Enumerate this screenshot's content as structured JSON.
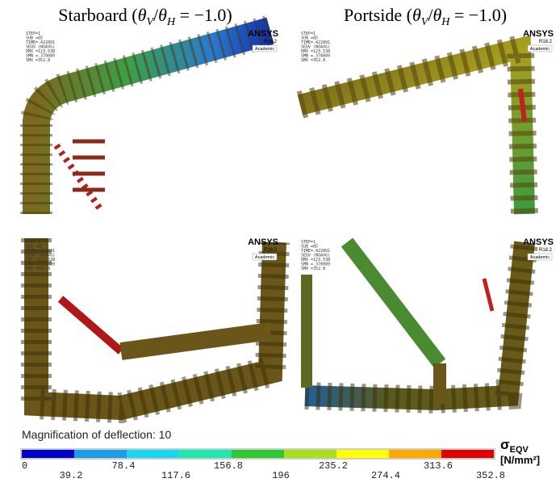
{
  "panels": [
    {
      "prefix": "Starboard (",
      "a": "θ",
      "a_sub": "V",
      "slash": "/",
      "b": "θ",
      "b_sub": "H",
      "suffix": " = −1.0)"
    },
    {
      "prefix": "Portside (",
      "a": "θ",
      "a_sub": "V",
      "slash": "/",
      "b": "θ",
      "b_sub": "H",
      "suffix": " = −1.0)"
    }
  ],
  "ansys": {
    "logo": "ANSYS",
    "version": "R18.2",
    "license": "Academic",
    "info": [
      "STEP=1",
      "SUB =85",
      "TIME=.422891",
      "SEQV     (NOAVG)",
      "DMX =123.538",
      "SMN =.378089",
      "SMX =352.8"
    ]
  },
  "magnification": "Magnification of deflection: 10",
  "colorbar": {
    "colors": [
      "#0000c8",
      "#1a9ee8",
      "#1ad6f2",
      "#20e8b0",
      "#30c830",
      "#a8e01e",
      "#ffff00",
      "#ffa800",
      "#e00000"
    ],
    "ticks": [
      "0",
      "39.2",
      "78.4",
      "117.6",
      "156.8",
      "196",
      "235.2",
      "274.4",
      "313.6",
      "352.8"
    ],
    "symbol": "σ",
    "symbol_sub": "EQV",
    "unit": "[N/mm²]"
  }
}
